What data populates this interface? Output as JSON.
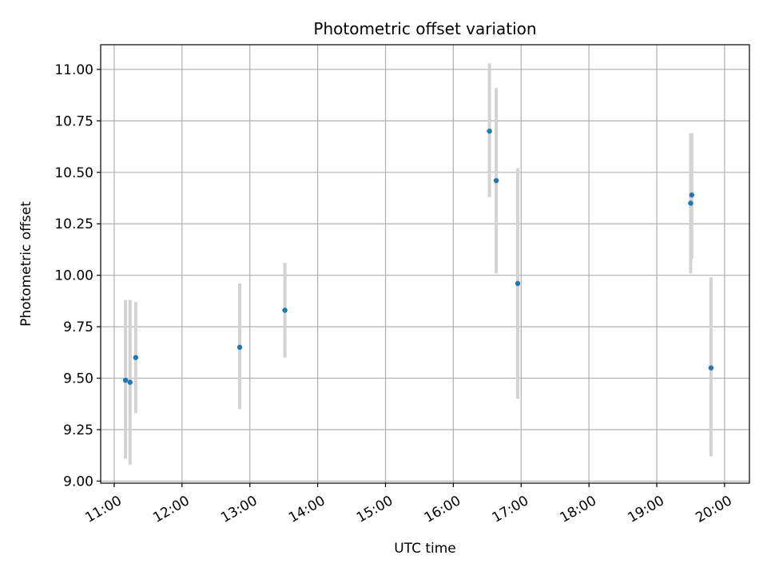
{
  "chart_data": {
    "type": "scatter",
    "title": "Photometric offset variation",
    "xlabel": "UTC time",
    "ylabel": "Photometric offset",
    "xlim": [
      "10:48",
      "20:22"
    ],
    "ylim": [
      8.99,
      11.12
    ],
    "x_ticks": [
      "11:00",
      "12:00",
      "13:00",
      "14:00",
      "15:00",
      "16:00",
      "17:00",
      "18:00",
      "19:00",
      "20:00"
    ],
    "y_ticks": [
      "9.00",
      "9.25",
      "9.50",
      "9.75",
      "10.00",
      "10.25",
      "10.50",
      "10.75",
      "11.00"
    ],
    "grid": true,
    "error_bars": true,
    "colors": {
      "points": "#1f77b4",
      "error_bars": "#d3d3d3",
      "grid": "#b0b0b0"
    },
    "points": [
      {
        "x": "11:10",
        "y": 9.49,
        "lo": 9.11,
        "hi": 9.88
      },
      {
        "x": "11:14",
        "y": 9.48,
        "lo": 9.08,
        "hi": 9.88
      },
      {
        "x": "11:19",
        "y": 9.6,
        "lo": 9.33,
        "hi": 9.87
      },
      {
        "x": "12:51",
        "y": 9.65,
        "lo": 9.35,
        "hi": 9.96
      },
      {
        "x": "13:31",
        "y": 9.83,
        "lo": 9.6,
        "hi": 10.06
      },
      {
        "x": "16:32",
        "y": 10.7,
        "lo": 10.38,
        "hi": 11.03
      },
      {
        "x": "16:38",
        "y": 10.46,
        "lo": 10.01,
        "hi": 10.91
      },
      {
        "x": "16:57",
        "y": 9.96,
        "lo": 9.4,
        "hi": 10.52
      },
      {
        "x": "19:30",
        "y": 10.35,
        "lo": 10.01,
        "hi": 10.69
      },
      {
        "x": "19:31",
        "y": 10.39,
        "lo": 10.08,
        "hi": 10.69
      },
      {
        "x": "19:48",
        "y": 9.55,
        "lo": 9.12,
        "hi": 9.99
      }
    ]
  }
}
